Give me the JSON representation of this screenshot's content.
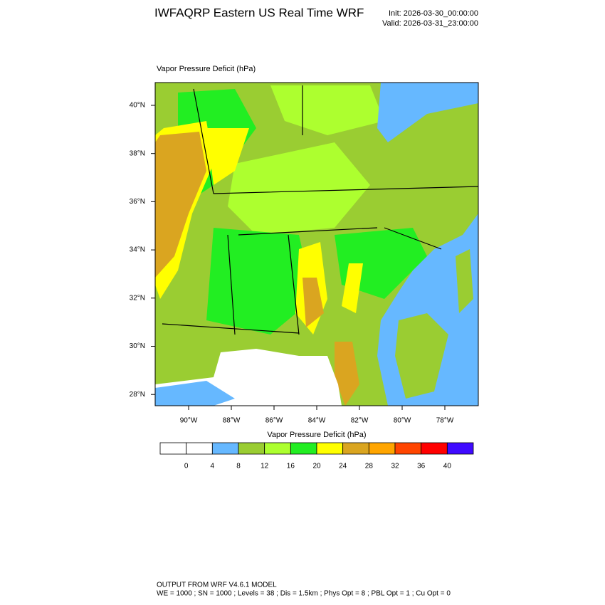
{
  "header": {
    "title": "IWFAQRP Eastern US Real Time WRF",
    "init": "Init: 2026-03-30_00:00:00",
    "valid": "Valid: 2026-03-31_23:00:00"
  },
  "map": {
    "field_label": "Vapor Pressure Deficit   (hPa)",
    "lat_labels": [
      "40°N",
      "38°N",
      "36°N",
      "34°N",
      "32°N",
      "30°N",
      "28°N"
    ],
    "lon_labels": [
      "90°W",
      "88°W",
      "86°W",
      "84°W",
      "82°W",
      "80°W",
      "78°W"
    ]
  },
  "colorbar": {
    "title": "Vapor Pressure Deficit  (hPa)",
    "colors": [
      "#ffffff",
      "#ffffff",
      "#66b8ff",
      "#9acd32",
      "#adff2f",
      "#22ee22",
      "#ffff00",
      "#daa520",
      "#ffa500",
      "#ff4500",
      "#ff0000",
      "#3f0aff"
    ],
    "labels": [
      0,
      4,
      8,
      12,
      16,
      20,
      24,
      28,
      32,
      36,
      40
    ]
  },
  "footer": {
    "line1": "OUTPUT FROM WRF V4.6.1 MODEL",
    "line2": "WE = 1000 ; SN = 1000 ; Levels = 38 ; Dis = 1.5km ; Phys Opt = 8 ; PBL Opt = 1 ; Cu Opt = 0"
  }
}
